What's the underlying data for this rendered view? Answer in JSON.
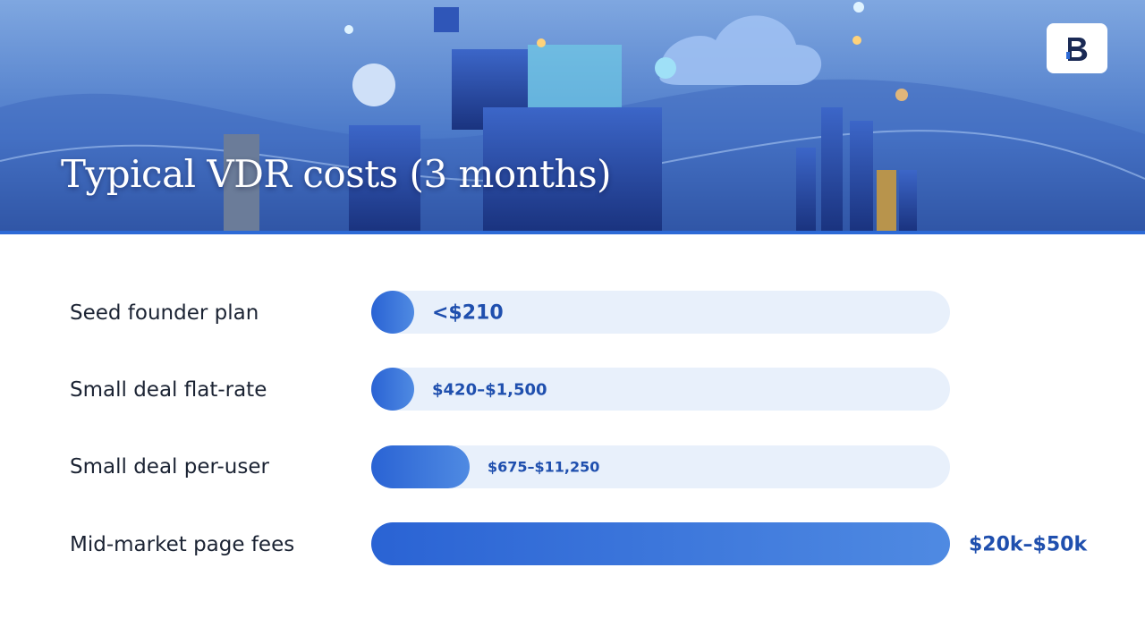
{
  "header": {
    "title": "Typical VDR costs (3 months)"
  },
  "rows": [
    {
      "label": "Seed founder plan",
      "value": "<$210"
    },
    {
      "label": "Small deal flat-rate",
      "value": "$420–$1,500"
    },
    {
      "label": "Small deal per-user",
      "value": "$675–$11,250"
    },
    {
      "label": "Mid-market page fees",
      "value": "$20k–$50k"
    }
  ]
}
